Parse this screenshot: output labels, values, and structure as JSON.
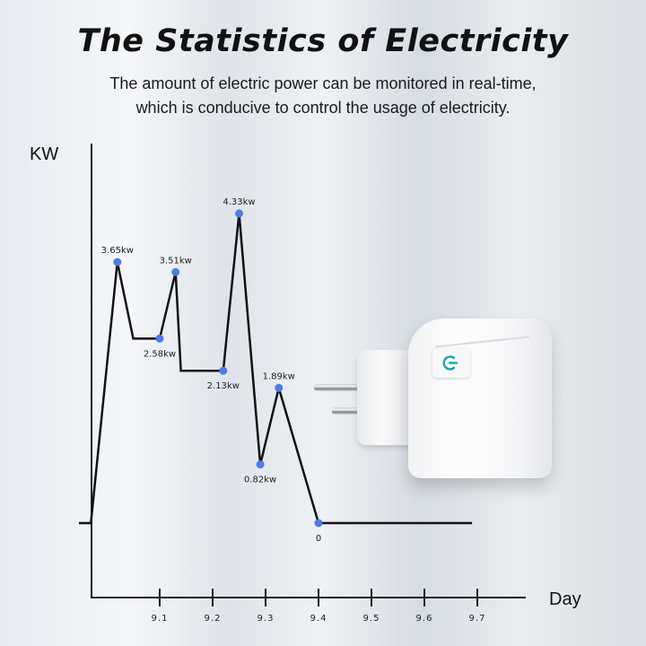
{
  "header": {
    "title": "The Statistics of Electricity",
    "subtitle_line1": "The amount of electric power can be monitored in real-time,",
    "subtitle_line2": "which is conducive to control the usage of electricity."
  },
  "chart_data": {
    "type": "line",
    "title": "",
    "xlabel": "Day",
    "ylabel": "KW",
    "x_ticks": [
      "9.1",
      "9.2",
      "9.3",
      "9.4",
      "9.5",
      "9.6",
      "9.7"
    ],
    "xlim": [
      8.97,
      9.78
    ],
    "ylim": [
      0,
      4.33
    ],
    "grid": false,
    "line_color": "#111111",
    "marker_color": "#4f7be8",
    "points": [
      {
        "x": 8.97,
        "y": 0,
        "label": null
      },
      {
        "x": 9.02,
        "y": 3.65,
        "label": "3.65kw",
        "label_position": "above"
      },
      {
        "x": 9.05,
        "y": 2.58,
        "label": null
      },
      {
        "x": 9.1,
        "y": 2.58,
        "label": "2.58kw",
        "label_position": "below"
      },
      {
        "x": 9.13,
        "y": 3.51,
        "label": "3.51kw",
        "label_position": "above"
      },
      {
        "x": 9.14,
        "y": 2.13,
        "label": null
      },
      {
        "x": 9.22,
        "y": 2.13,
        "label": "2.13kw",
        "label_position": "below"
      },
      {
        "x": 9.25,
        "y": 4.33,
        "label": "4.33kw",
        "label_position": "above"
      },
      {
        "x": 9.29,
        "y": 0.82,
        "label": "0.82kw",
        "label_position": "below"
      },
      {
        "x": 9.325,
        "y": 1.89,
        "label": "1.89kw",
        "label_position": "above"
      },
      {
        "x": 9.4,
        "y": 0,
        "label": "0",
        "label_position": "below"
      },
      {
        "x": 9.69,
        "y": 0,
        "label": null
      }
    ]
  },
  "product": {
    "name": "smart-plug",
    "button_color": "#19a7b0"
  }
}
